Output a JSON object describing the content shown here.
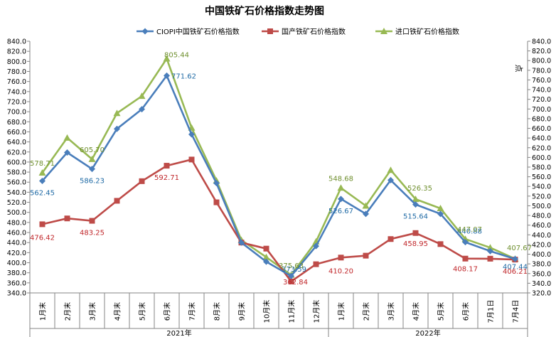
{
  "chart_data": {
    "type": "line",
    "title": "中国铁矿石价格指数走势图",
    "left_axis": {
      "min": 340,
      "max": 840,
      "step": 20
    },
    "right_axis": {
      "min": 320,
      "max": 840,
      "step": 20,
      "unit_label": "点"
    },
    "categories": [
      "1月末",
      "2月末",
      "3月末",
      "4月末",
      "5月末",
      "6月末",
      "7月末",
      "8月末",
      "9月末",
      "10月末",
      "11月末",
      "12月末",
      "1月末",
      "2月末",
      "3月末",
      "4月末",
      "5月末",
      "6月末",
      "7月1日",
      "7月4日"
    ],
    "year_groups": [
      {
        "label": "2021年",
        "start": 0,
        "end": 11
      },
      {
        "label": "2022年",
        "start": 12,
        "end": 19
      }
    ],
    "series": [
      {
        "name": "CIOPI中国铁矿石价格指数",
        "color": "#4a7ebb",
        "marker": "diamond",
        "values": [
          562.45,
          619,
          586.23,
          666,
          705,
          771.62,
          655,
          558,
          440,
          402,
          373.59,
          433,
          526.67,
          497,
          564,
          515.64,
          497,
          440.88,
          423,
          407.44
        ]
      },
      {
        "name": "国产铁矿石价格指数",
        "color": "#be4b48",
        "marker": "square",
        "values": [
          476.42,
          488,
          483.25,
          523,
          562,
          592.71,
          605,
          520,
          440,
          428,
          362.84,
          397,
          410.2,
          414,
          447,
          458.95,
          437,
          408.17,
          408,
          406.21
        ]
      },
      {
        "name": "进口铁矿石价格指数",
        "color": "#98b954",
        "marker": "triangle",
        "values": [
          578.71,
          648,
          605.7,
          697,
          731,
          805.44,
          668,
          563,
          445,
          411,
          375.63,
          442,
          548.68,
          513,
          584,
          526.35,
          508,
          447.07,
          430,
          407.67
        ]
      }
    ],
    "data_labels": [
      {
        "series": 0,
        "index": 0,
        "text": "562.45"
      },
      {
        "series": 0,
        "index": 2,
        "text": "586.23"
      },
      {
        "series": 0,
        "index": 5,
        "text": "771.62"
      },
      {
        "series": 0,
        "index": 10,
        "text": "373.59"
      },
      {
        "series": 0,
        "index": 12,
        "text": "526.67"
      },
      {
        "series": 0,
        "index": 15,
        "text": "515.64"
      },
      {
        "series": 0,
        "index": 17,
        "text": "440.88"
      },
      {
        "series": 0,
        "index": 19,
        "text": "407.44"
      },
      {
        "series": 1,
        "index": 0,
        "text": "476.42"
      },
      {
        "series": 1,
        "index": 2,
        "text": "483.25"
      },
      {
        "series": 1,
        "index": 5,
        "text": "592.71"
      },
      {
        "series": 1,
        "index": 10,
        "text": "362.84"
      },
      {
        "series": 1,
        "index": 12,
        "text": "410.20"
      },
      {
        "series": 1,
        "index": 15,
        "text": "458.95"
      },
      {
        "series": 1,
        "index": 17,
        "text": "408.17"
      },
      {
        "series": 1,
        "index": 19,
        "text": "406.21"
      },
      {
        "series": 2,
        "index": 0,
        "text": "578.71"
      },
      {
        "series": 2,
        "index": 2,
        "text": "605.70"
      },
      {
        "series": 2,
        "index": 5,
        "text": "805.44"
      },
      {
        "series": 2,
        "index": 10,
        "text": "375.63"
      },
      {
        "series": 2,
        "index": 12,
        "text": "548.68"
      },
      {
        "series": 2,
        "index": 15,
        "text": "526.35"
      },
      {
        "series": 2,
        "index": 17,
        "text": "447.07"
      },
      {
        "series": 2,
        "index": 19,
        "text": "407.67"
      }
    ],
    "legend_position": "top",
    "grid": false
  }
}
